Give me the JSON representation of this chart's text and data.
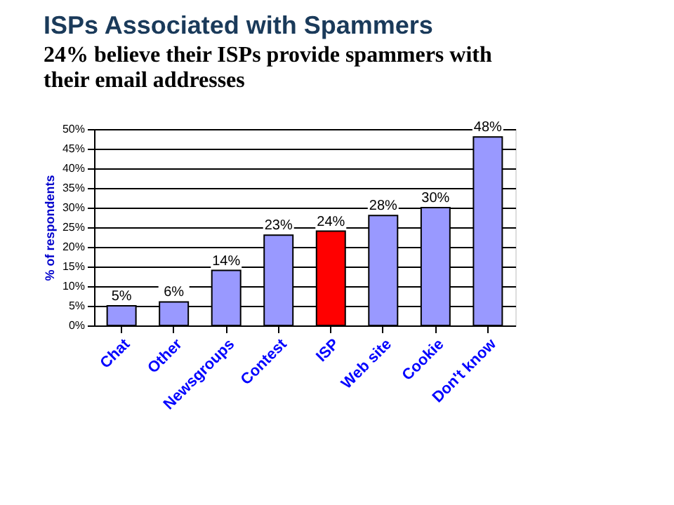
{
  "chart_data": {
    "type": "bar",
    "title": "ISPs Associated with Spammers",
    "subtitle": "24% believe their ISPs provide spammers with their email addresses",
    "ylabel": "% of respondents",
    "categories": [
      "Chat",
      "Other",
      "Newsgroups",
      "Contest",
      "ISP",
      "Web site",
      "Cookie",
      "Don't know"
    ],
    "values": [
      5,
      6,
      14,
      23,
      24,
      28,
      30,
      48
    ],
    "colors": [
      "#9999ff",
      "#9999ff",
      "#9999ff",
      "#9999ff",
      "#ff0000",
      "#9999ff",
      "#9999ff",
      "#9999ff"
    ],
    "value_labels": [
      "5%",
      "6%",
      "14%",
      "23%",
      "24%",
      "28%",
      "30%",
      "48%"
    ],
    "ylim": [
      0,
      50
    ],
    "yticks": [
      {
        "value": 0,
        "label": "0%"
      },
      {
        "value": 5,
        "label": "5%"
      },
      {
        "value": 10,
        "label": "10%"
      },
      {
        "value": 15,
        "label": "15%"
      },
      {
        "value": 20,
        "label": "20%"
      },
      {
        "value": 25,
        "label": "25%"
      },
      {
        "value": 30,
        "label": "30%"
      },
      {
        "value": 35,
        "label": "35%"
      },
      {
        "value": 40,
        "label": "40%"
      },
      {
        "value": 45,
        "label": "45%"
      },
      {
        "value": 50,
        "label": "50%"
      }
    ],
    "grid": "y",
    "legend": false
  }
}
